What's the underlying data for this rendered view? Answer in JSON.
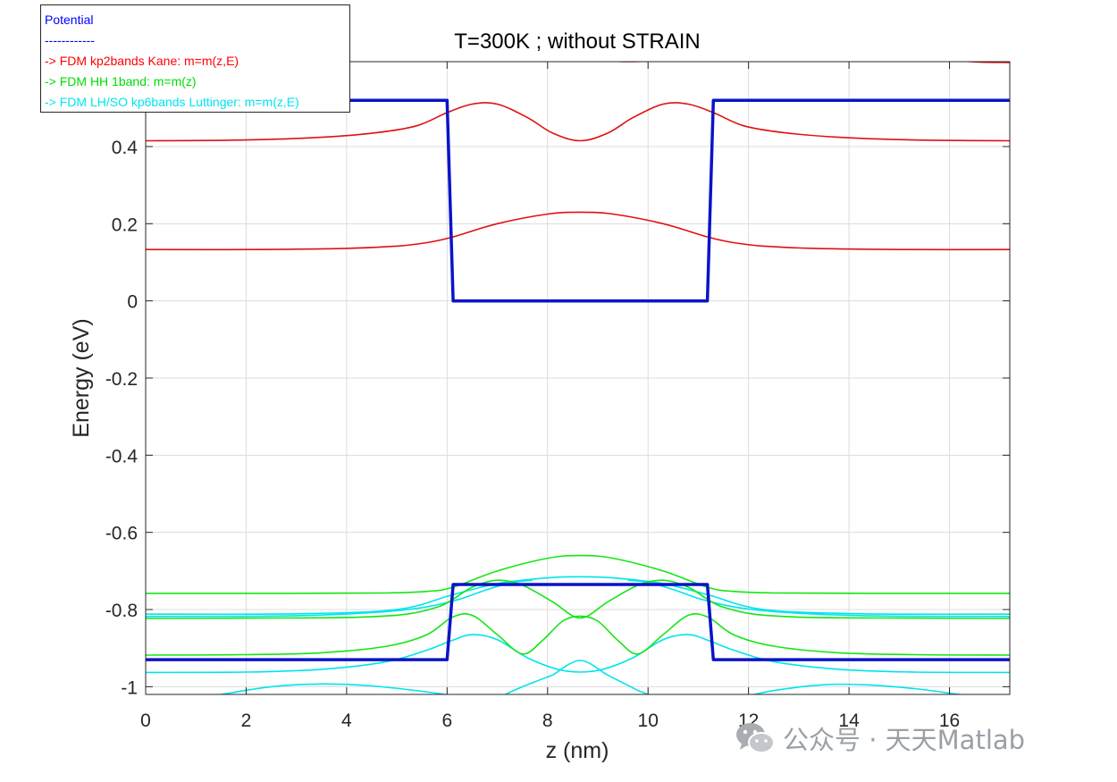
{
  "watermark": {
    "text": "公众号 · 天天Matlab",
    "icon": "wechat-icon"
  },
  "chart_data": {
    "type": "line",
    "title": "T=300K ; without STRAIN",
    "xlabel": "z (nm)",
    "ylabel": "Energy (eV)",
    "xlim": [
      0,
      17.2
    ],
    "ylim": [
      -1.02,
      0.62
    ],
    "x_ticks": [
      0,
      2,
      4,
      6,
      8,
      10,
      12,
      14,
      16
    ],
    "y_ticks": [
      -1,
      -0.8,
      -0.6,
      -0.4,
      -0.2,
      0,
      0.2,
      0.4
    ],
    "grid": true,
    "legend_position": "top-left",
    "legend": [
      {
        "label": "Potential",
        "color": "#0000ff"
      },
      {
        "label": "------------",
        "color": "#0000ff"
      },
      {
        "label": "-> FDM kp2bands Kane: m=m(z,E)",
        "color": "#ff0000"
      },
      {
        "label": "-> FDM HH 1band: m=m(z)",
        "color": "#00dd00"
      },
      {
        "label": "-> FDM LH/SO kp6bands Luttinger: m=m(z,E)",
        "color": "#00e5ee"
      }
    ],
    "series": [
      {
        "group": "potential",
        "color": "#0a14c8",
        "width": 3.5,
        "points": [
          [
            0,
            0.52
          ],
          [
            6.0,
            0.52
          ],
          [
            6.12,
            0.0
          ],
          [
            11.18,
            0.0
          ],
          [
            11.3,
            0.52
          ],
          [
            17.2,
            0.52
          ]
        ]
      },
      {
        "group": "potential",
        "color": "#0a14c8",
        "width": 3.5,
        "points": [
          [
            0,
            -0.93
          ],
          [
            6.0,
            -0.93
          ],
          [
            6.12,
            -0.735
          ],
          [
            11.18,
            -0.735
          ],
          [
            11.3,
            -0.93
          ],
          [
            17.2,
            -0.93
          ]
        ]
      },
      {
        "group": "kane",
        "color": "#e01010",
        "width": 1.6,
        "points": [
          [
            0,
            0.133
          ],
          [
            2,
            0.133
          ],
          [
            4,
            0.136
          ],
          [
            5,
            0.142
          ],
          [
            5.6,
            0.151
          ],
          [
            6.1,
            0.165
          ],
          [
            7,
            0.2
          ],
          [
            8,
            0.225
          ],
          [
            8.65,
            0.23
          ],
          [
            9.3,
            0.225
          ],
          [
            10.3,
            0.2
          ],
          [
            11.2,
            0.165
          ],
          [
            11.7,
            0.151
          ],
          [
            12.3,
            0.142
          ],
          [
            13.3,
            0.136
          ],
          [
            15.3,
            0.133
          ],
          [
            17.2,
            0.133
          ]
        ]
      },
      {
        "group": "kane",
        "color": "#e01010",
        "width": 1.6,
        "points": [
          [
            0,
            0.415
          ],
          [
            2,
            0.417
          ],
          [
            3.5,
            0.424
          ],
          [
            4.6,
            0.436
          ],
          [
            5.4,
            0.454
          ],
          [
            6.0,
            0.488
          ],
          [
            6.5,
            0.51
          ],
          [
            7.0,
            0.51
          ],
          [
            7.6,
            0.475
          ],
          [
            8.1,
            0.435
          ],
          [
            8.65,
            0.415
          ],
          [
            9.2,
            0.435
          ],
          [
            9.7,
            0.475
          ],
          [
            10.3,
            0.51
          ],
          [
            10.8,
            0.51
          ],
          [
            11.3,
            0.488
          ],
          [
            11.9,
            0.454
          ],
          [
            12.7,
            0.436
          ],
          [
            13.8,
            0.424
          ],
          [
            15.3,
            0.417
          ],
          [
            17.2,
            0.415
          ]
        ]
      },
      {
        "group": "kane",
        "color": "#e01010",
        "width": 1.6,
        "points": [
          [
            5.7,
            0.64
          ],
          [
            6.0,
            0.622
          ],
          [
            6.4,
            0.622
          ],
          [
            6.9,
            0.63
          ],
          [
            7.1,
            0.64
          ]
        ]
      },
      {
        "group": "kane",
        "color": "#e01010",
        "width": 1.6,
        "points": [
          [
            9.0,
            0.64
          ],
          [
            9.2,
            0.625
          ],
          [
            9.6,
            0.62
          ],
          [
            10.2,
            0.625
          ],
          [
            10.5,
            0.64
          ]
        ]
      },
      {
        "group": "kane",
        "color": "#e01010",
        "width": 1.6,
        "points": [
          [
            15.6,
            0.64
          ],
          [
            16.0,
            0.625
          ],
          [
            16.6,
            0.619
          ],
          [
            17.2,
            0.618
          ]
        ]
      },
      {
        "group": "hh",
        "color": "#14e614",
        "width": 1.6,
        "points": [
          [
            0,
            -0.758
          ],
          [
            3,
            -0.758
          ],
          [
            4.8,
            -0.757
          ],
          [
            5.6,
            -0.753
          ],
          [
            6.1,
            -0.743
          ],
          [
            7,
            -0.7
          ],
          [
            8,
            -0.667
          ],
          [
            8.65,
            -0.66
          ],
          [
            9.3,
            -0.667
          ],
          [
            10.3,
            -0.7
          ],
          [
            11.2,
            -0.743
          ],
          [
            11.7,
            -0.753
          ],
          [
            12.5,
            -0.757
          ],
          [
            14.3,
            -0.758
          ],
          [
            17.2,
            -0.758
          ]
        ]
      },
      {
        "group": "hh",
        "color": "#14e614",
        "width": 1.6,
        "points": [
          [
            0,
            -0.823
          ],
          [
            2.5,
            -0.822
          ],
          [
            4.2,
            -0.82
          ],
          [
            5.2,
            -0.812
          ],
          [
            5.8,
            -0.794
          ],
          [
            6.1,
            -0.775
          ],
          [
            6.5,
            -0.742
          ],
          [
            7.0,
            -0.724
          ],
          [
            7.5,
            -0.737
          ],
          [
            8.1,
            -0.78
          ],
          [
            8.65,
            -0.822
          ],
          [
            9.2,
            -0.78
          ],
          [
            9.8,
            -0.737
          ],
          [
            10.3,
            -0.724
          ],
          [
            10.8,
            -0.742
          ],
          [
            11.2,
            -0.775
          ],
          [
            11.5,
            -0.794
          ],
          [
            12.1,
            -0.812
          ],
          [
            13.1,
            -0.82
          ],
          [
            14.7,
            -0.822
          ],
          [
            17.2,
            -0.823
          ]
        ]
      },
      {
        "group": "hh",
        "color": "#14e614",
        "width": 1.6,
        "points": [
          [
            0,
            -0.918
          ],
          [
            2,
            -0.917
          ],
          [
            3.5,
            -0.912
          ],
          [
            4.8,
            -0.895
          ],
          [
            5.6,
            -0.865
          ],
          [
            6.1,
            -0.82
          ],
          [
            6.5,
            -0.815
          ],
          [
            7.0,
            -0.865
          ],
          [
            7.5,
            -0.915
          ],
          [
            7.9,
            -0.88
          ],
          [
            8.3,
            -0.83
          ],
          [
            8.65,
            -0.817
          ],
          [
            9.0,
            -0.83
          ],
          [
            9.4,
            -0.88
          ],
          [
            9.8,
            -0.915
          ],
          [
            10.3,
            -0.865
          ],
          [
            10.8,
            -0.815
          ],
          [
            11.2,
            -0.82
          ],
          [
            11.7,
            -0.865
          ],
          [
            12.5,
            -0.895
          ],
          [
            13.8,
            -0.912
          ],
          [
            15.3,
            -0.917
          ],
          [
            17.2,
            -0.918
          ]
        ]
      },
      {
        "group": "lhso",
        "color": "#00e4ec",
        "width": 1.6,
        "points": [
          [
            0,
            -0.812
          ],
          [
            3,
            -0.811
          ],
          [
            5,
            -0.8
          ],
          [
            6.1,
            -0.762
          ],
          [
            7,
            -0.733
          ],
          [
            8,
            -0.718
          ],
          [
            8.65,
            -0.715
          ],
          [
            9.3,
            -0.718
          ],
          [
            10.3,
            -0.733
          ],
          [
            11.2,
            -0.762
          ],
          [
            12.3,
            -0.8
          ],
          [
            14.3,
            -0.811
          ],
          [
            17.2,
            -0.812
          ]
        ]
      },
      {
        "group": "lhso",
        "color": "#00e4ec",
        "width": 1.6,
        "points": [
          [
            0,
            -0.818
          ],
          [
            3,
            -0.816
          ],
          [
            4.5,
            -0.808
          ],
          [
            5.5,
            -0.795
          ],
          [
            6.2,
            -0.775
          ],
          [
            6.8,
            -0.748
          ],
          [
            7.3,
            -0.73
          ],
          [
            7.7,
            -0.724
          ]
        ]
      },
      {
        "group": "lhso",
        "color": "#00e4ec",
        "width": 1.6,
        "points": [
          [
            9.6,
            -0.724
          ],
          [
            10.0,
            -0.73
          ],
          [
            10.5,
            -0.748
          ],
          [
            11.1,
            -0.775
          ],
          [
            11.8,
            -0.795
          ],
          [
            12.8,
            -0.808
          ],
          [
            14.3,
            -0.816
          ],
          [
            17.2,
            -0.818
          ]
        ]
      },
      {
        "group": "lhso",
        "color": "#00e4ec",
        "width": 1.6,
        "points": [
          [
            0,
            -0.963
          ],
          [
            2,
            -0.962
          ],
          [
            3.5,
            -0.955
          ],
          [
            4.8,
            -0.935
          ],
          [
            5.6,
            -0.905
          ],
          [
            6.1,
            -0.88
          ],
          [
            6.5,
            -0.865
          ],
          [
            7,
            -0.878
          ],
          [
            7.6,
            -0.925
          ],
          [
            8.2,
            -0.955
          ],
          [
            8.65,
            -0.962
          ],
          [
            9.1,
            -0.955
          ],
          [
            9.7,
            -0.925
          ],
          [
            10.3,
            -0.878
          ],
          [
            10.8,
            -0.865
          ],
          [
            11.2,
            -0.88
          ],
          [
            11.7,
            -0.905
          ],
          [
            12.5,
            -0.935
          ],
          [
            13.8,
            -0.955
          ],
          [
            15.3,
            -0.962
          ],
          [
            17.2,
            -0.963
          ]
        ]
      },
      {
        "group": "lhso",
        "color": "#00e4ec",
        "width": 1.6,
        "points": [
          [
            8.1,
            -0.97
          ],
          [
            8.65,
            -0.932
          ],
          [
            9.2,
            -0.97
          ],
          [
            9.8,
            -1.01
          ]
        ]
      },
      {
        "group": "lhso",
        "color": "#00e4ec",
        "width": 1.6,
        "points": [
          [
            0.8,
            -1.03
          ],
          [
            1.5,
            -1.02
          ],
          [
            2.5,
            -1.0
          ],
          [
            3.5,
            -0.993
          ],
          [
            4.5,
            -0.998
          ],
          [
            5.5,
            -1.012
          ],
          [
            6.2,
            -1.025
          ],
          [
            6.5,
            -1.035
          ]
        ]
      },
      {
        "group": "lhso",
        "color": "#00e4ec",
        "width": 1.6,
        "points": [
          [
            7.0,
            -1.03
          ],
          [
            7.5,
            -1.0
          ],
          [
            8.1,
            -0.97
          ]
        ]
      },
      {
        "group": "lhso",
        "color": "#00e4ec",
        "width": 1.6,
        "points": [
          [
            9.8,
            -1.01
          ],
          [
            10.2,
            -1.03
          ]
        ]
      },
      {
        "group": "lhso",
        "color": "#00e4ec",
        "width": 1.6,
        "points": [
          [
            11.8,
            -1.03
          ],
          [
            12.5,
            -1.01
          ],
          [
            13.5,
            -0.995
          ],
          [
            14.3,
            -0.995
          ],
          [
            15.3,
            -1.005
          ],
          [
            16.2,
            -1.02
          ],
          [
            16.9,
            -1.03
          ]
        ]
      }
    ]
  }
}
